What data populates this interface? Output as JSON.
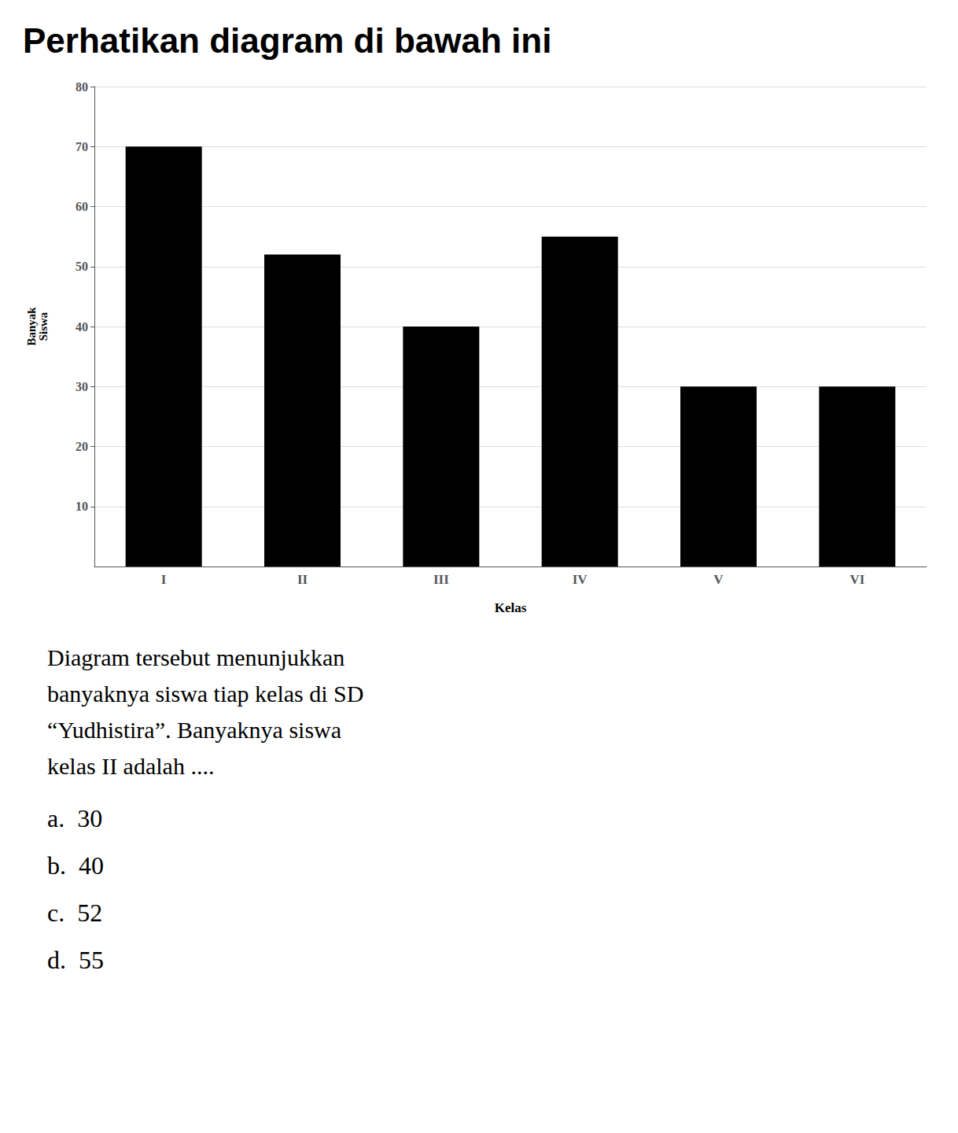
{
  "chart_data": {
    "type": "bar",
    "title": "Perhatikan diagram di bawah ini",
    "categories": [
      "I",
      "II",
      "III",
      "IV",
      "V",
      "VI"
    ],
    "values": [
      70,
      52,
      40,
      55,
      30,
      30
    ],
    "color": "#000000",
    "xlabel": "Kelas",
    "ylabel": "Banyak\nSiswa",
    "ylim": [
      0,
      80
    ],
    "yticks": [
      10,
      20,
      30,
      40,
      50,
      60,
      70,
      80
    ],
    "grid": true,
    "annotations": [
      "Diagram tersebut menunjukkan",
      "banyaknya siswa tiap kelas di SD",
      "“Yudhistira”. Banyaknya siswa",
      "kelas II adalah ....",
      "a.  30",
      "b.  40",
      "c.  52",
      "d.  55"
    ]
  }
}
